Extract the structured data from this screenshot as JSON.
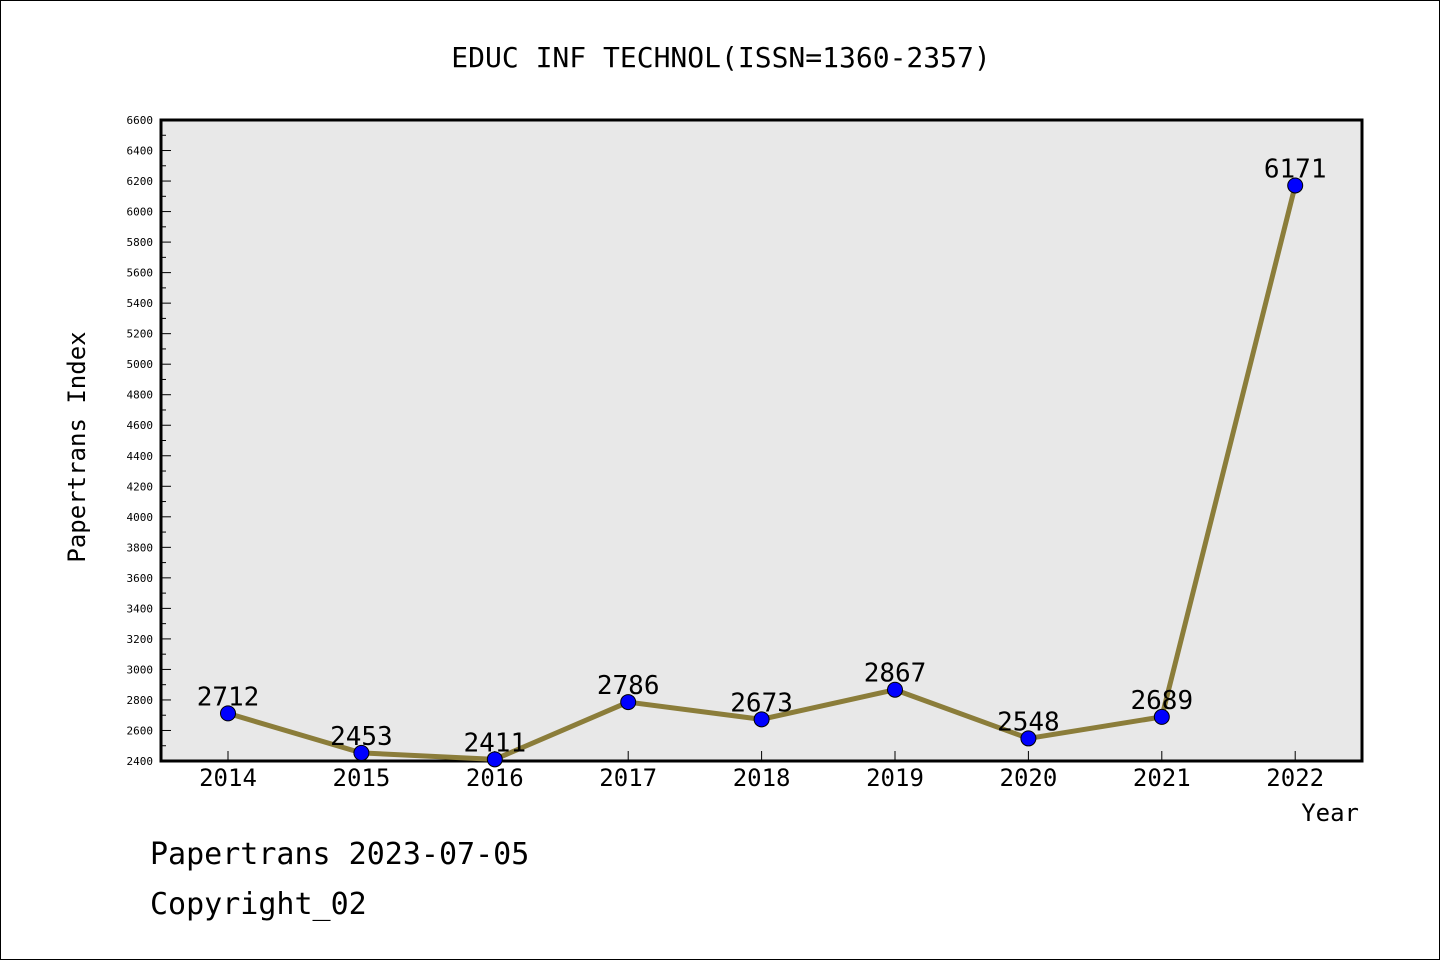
{
  "chart_data": {
    "type": "line",
    "title": "EDUC INF TECHNOL(ISSN=1360-2357)",
    "xlabel": "Year",
    "ylabel": "Papertrans Index",
    "categories": [
      "2014",
      "2015",
      "2016",
      "2017",
      "2018",
      "2019",
      "2020",
      "2021",
      "2022"
    ],
    "values": [
      2712,
      2453,
      2411,
      2786,
      2673,
      2867,
      2548,
      2689,
      6171
    ],
    "data_labels": [
      "2712",
      "2453",
      "2411",
      "2786",
      "2673",
      "2867",
      "2548",
      "2689",
      "6171"
    ],
    "ylim": [
      2400,
      6600
    ],
    "y_ticks": [
      2400,
      2600,
      2800,
      3000,
      3200,
      3400,
      3600,
      3800,
      4000,
      4200,
      4400,
      4600,
      4800,
      5000,
      5200,
      5400,
      5600,
      5800,
      6000,
      6200,
      6400,
      6600
    ],
    "grid": false,
    "line_color": "#8b7d3a",
    "marker_color": "#0000ff",
    "plot_background": "#e8e8e8"
  },
  "footer": {
    "line1": "Papertrans 2023-07-05",
    "line2": "Copyright_02"
  }
}
